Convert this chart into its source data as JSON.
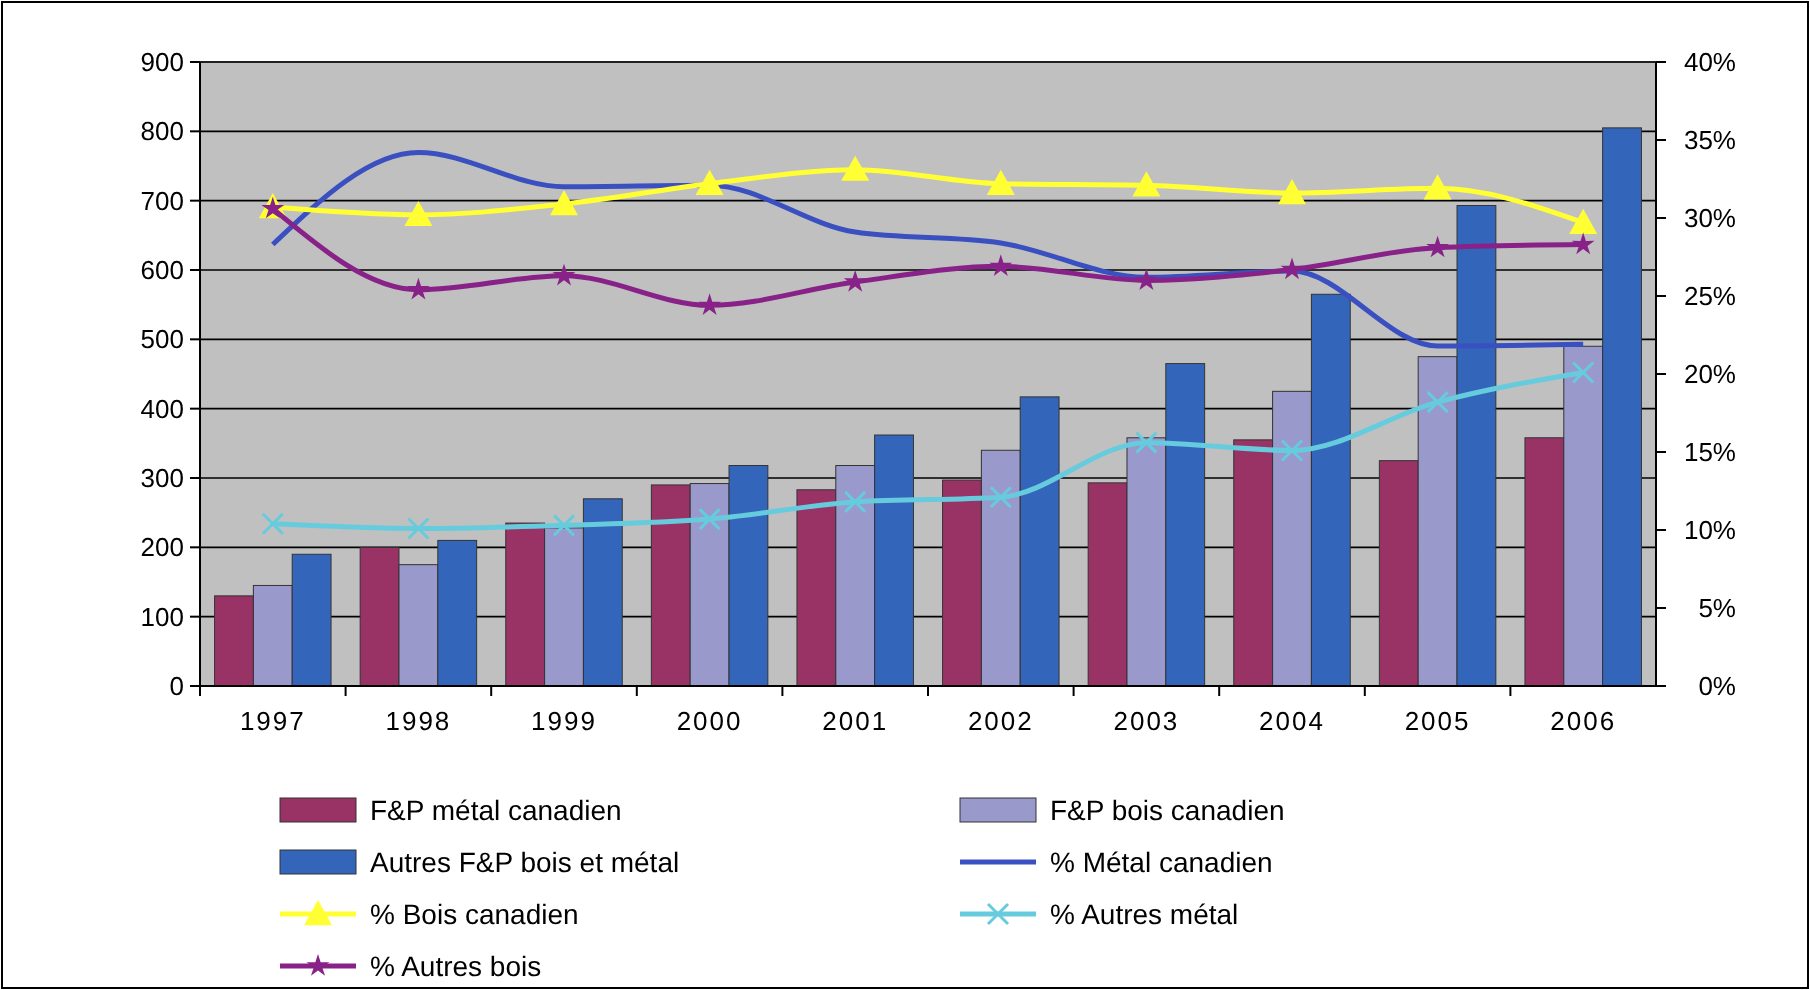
{
  "chart_data": {
    "type": "bar",
    "categories": [
      "1997",
      "1998",
      "1999",
      "2000",
      "2001",
      "2002",
      "2003",
      "2004",
      "2005",
      "2006"
    ],
    "ylim": [
      0,
      900
    ],
    "yticks": [
      0,
      100,
      200,
      300,
      400,
      500,
      600,
      700,
      800,
      900
    ],
    "y2lim": [
      0,
      40
    ],
    "y2ticks": [
      {
        "value": 0,
        "label": "0%"
      },
      {
        "value": 5,
        "label": "5%"
      },
      {
        "value": 10,
        "label": "10%"
      },
      {
        "value": 15,
        "label": "15%"
      },
      {
        "value": 20,
        "label": "20%"
      },
      {
        "value": 25,
        "label": "25%"
      },
      {
        "value": 30,
        "label": "30%"
      },
      {
        "value": 35,
        "label": "35%"
      },
      {
        "value": 40,
        "label": "40%"
      }
    ],
    "grid": "y",
    "legend": "bottom",
    "series": [
      {
        "name": "F&P métal canadien",
        "color": "#993366",
        "values": [
          130,
          200,
          235,
          290,
          283,
          297,
          293,
          355,
          325,
          358
        ]
      },
      {
        "name": "F&P bois canadien",
        "color": "#9999cc",
        "values": [
          145,
          175,
          228,
          292,
          318,
          340,
          358,
          425,
          475,
          490
        ]
      },
      {
        "name": "Autres F&P bois et métal",
        "color": "#3366bb",
        "values": [
          190,
          210,
          270,
          318,
          362,
          417,
          465,
          565,
          693,
          805
        ]
      },
      {
        "name": "% Métal canadien",
        "type": "line",
        "axis": "y2",
        "marker": "none",
        "color": "#3a50c0",
        "values": [
          28.3,
          34.2,
          32,
          32.1,
          29.1,
          28.4,
          26.2,
          26.6,
          21.8,
          21.9
        ]
      },
      {
        "name": "% Bois canadien",
        "type": "line",
        "axis": "y2",
        "marker": "triangle",
        "color": "#ffff33",
        "values": [
          30.7,
          30.2,
          30.9,
          32.2,
          33.1,
          32.2,
          32.1,
          31.6,
          31.9,
          29.7
        ]
      },
      {
        "name": "% Autres métal",
        "type": "line",
        "axis": "y2",
        "marker": "cross",
        "color": "#66ccdd",
        "values": [
          10.4,
          10.1,
          10.3,
          10.7,
          11.8,
          12.1,
          15.6,
          15.1,
          18.2,
          20.1
        ]
      },
      {
        "name": "% Autres bois",
        "type": "line",
        "axis": "y2",
        "marker": "star",
        "color": "#882288",
        "values": [
          30.6,
          25.4,
          26.3,
          24.4,
          25.9,
          26.9,
          26,
          26.7,
          28.1,
          28.3
        ]
      }
    ]
  }
}
